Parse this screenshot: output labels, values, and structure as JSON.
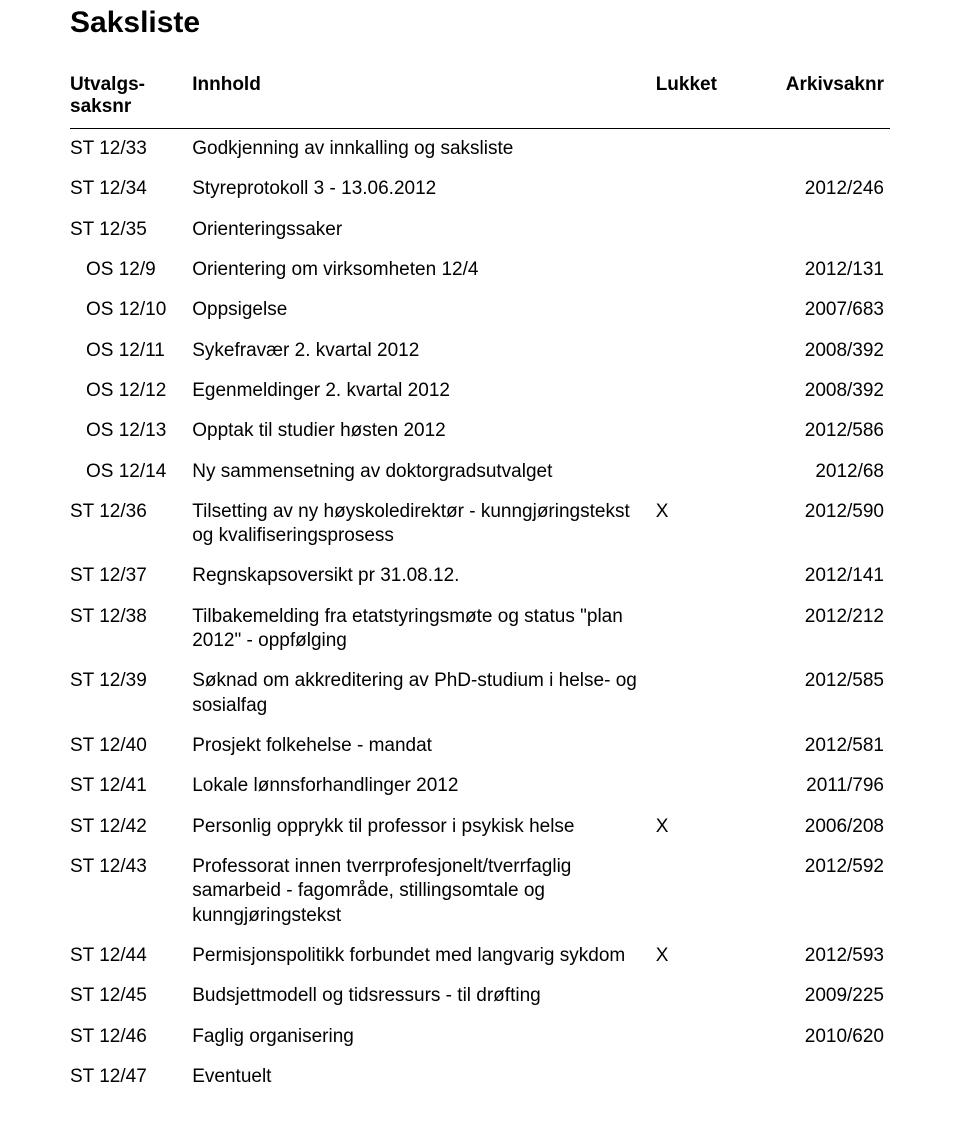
{
  "title": "Saksliste",
  "columns": {
    "ref": "Utvalgs-\nsaksnr",
    "innhold": "Innhold",
    "lukket": "Lukket",
    "arkiv": "Arkivsaknr"
  },
  "rows": [
    {
      "ref": "ST 12/33",
      "innhold": "Godkjenning av innkalling og saksliste",
      "lukket": "",
      "arkiv": "",
      "sub": false
    },
    {
      "ref": "ST 12/34",
      "innhold": "Styreprotokoll 3 - 13.06.2012",
      "lukket": "",
      "arkiv": "2012/246",
      "sub": false
    },
    {
      "ref": "ST 12/35",
      "innhold": "Orienteringssaker",
      "lukket": "",
      "arkiv": "",
      "sub": false
    },
    {
      "ref": "OS 12/9",
      "innhold": "Orientering om virksomheten 12/4",
      "lukket": "",
      "arkiv": "2012/131",
      "sub": true
    },
    {
      "ref": "OS 12/10",
      "innhold": "Oppsigelse",
      "lukket": "",
      "arkiv": "2007/683",
      "sub": true
    },
    {
      "ref": "OS 12/11",
      "innhold": "Sykefravær 2. kvartal 2012",
      "lukket": "",
      "arkiv": "2008/392",
      "sub": true
    },
    {
      "ref": "OS 12/12",
      "innhold": "Egenmeldinger 2. kvartal 2012",
      "lukket": "",
      "arkiv": "2008/392",
      "sub": true
    },
    {
      "ref": "OS 12/13",
      "innhold": "Opptak til studier høsten 2012",
      "lukket": "",
      "arkiv": "2012/586",
      "sub": true
    },
    {
      "ref": "OS 12/14",
      "innhold": "Ny sammensetning av doktorgradsutvalget",
      "lukket": "",
      "arkiv": "2012/68",
      "sub": true
    },
    {
      "ref": "ST 12/36",
      "innhold": "Tilsetting av ny høyskoledirektør - kunngjøringstekst og kvalifiseringsprosess",
      "lukket": "X",
      "arkiv": "2012/590",
      "sub": false
    },
    {
      "ref": "ST 12/37",
      "innhold": "Regnskapsoversikt pr 31.08.12.",
      "lukket": "",
      "arkiv": "2012/141",
      "sub": false
    },
    {
      "ref": "ST 12/38",
      "innhold": "Tilbakemelding fra etatstyringsmøte og status \"plan 2012\" - oppfølging",
      "lukket": "",
      "arkiv": "2012/212",
      "sub": false
    },
    {
      "ref": "ST 12/39",
      "innhold": "Søknad om akkreditering av PhD-studium i helse- og sosialfag",
      "lukket": "",
      "arkiv": "2012/585",
      "sub": false
    },
    {
      "ref": "ST 12/40",
      "innhold": "Prosjekt folkehelse - mandat",
      "lukket": "",
      "arkiv": "2012/581",
      "sub": false
    },
    {
      "ref": "ST 12/41",
      "innhold": "Lokale lønnsforhandlinger 2012",
      "lukket": "",
      "arkiv": "2011/796",
      "sub": false
    },
    {
      "ref": "ST 12/42",
      "innhold": "Personlig opprykk til professor i psykisk helse",
      "lukket": "X",
      "arkiv": "2006/208",
      "sub": false
    },
    {
      "ref": "ST 12/43",
      "innhold": "Professorat innen tverrprofesjonelt/tverrfaglig samarbeid - fagområde, stillingsomtale og kunngjøringstekst",
      "lukket": "",
      "arkiv": "2012/592",
      "sub": false
    },
    {
      "ref": "ST 12/44",
      "innhold": "Permisjonspolitikk forbundet med langvarig sykdom",
      "lukket": "X",
      "arkiv": "2012/593",
      "sub": false
    },
    {
      "ref": "ST 12/45",
      "innhold": "Budsjettmodell og tidsressurs - til drøfting",
      "lukket": "",
      "arkiv": "2009/225",
      "sub": false
    },
    {
      "ref": "ST 12/46",
      "innhold": "Faglig organisering",
      "lukket": "",
      "arkiv": "2010/620",
      "sub": false
    },
    {
      "ref": "ST 12/47",
      "innhold": "Eventuelt",
      "lukket": "",
      "arkiv": "",
      "sub": false
    }
  ]
}
